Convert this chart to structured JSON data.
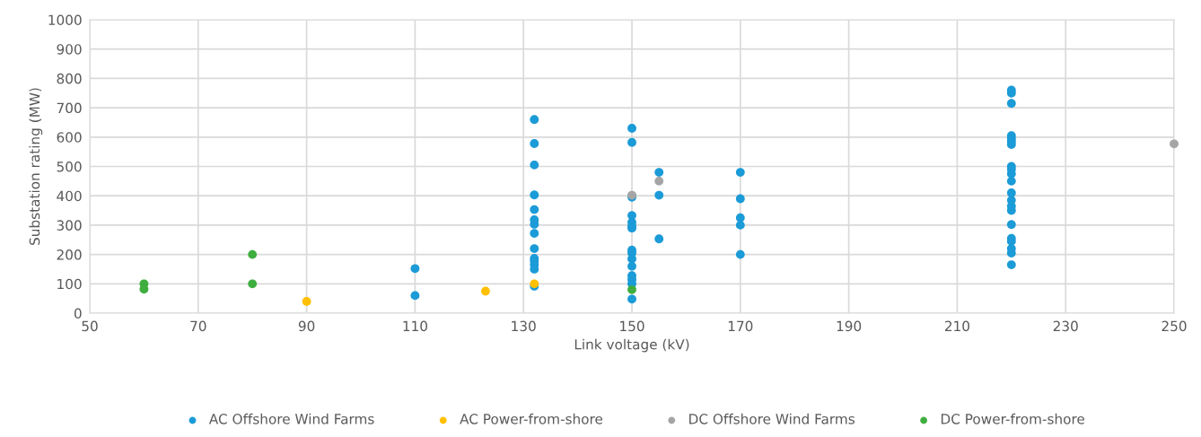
{
  "chart_data": {
    "type": "scatter",
    "xlabel": "Link voltage (kV)",
    "ylabel": "Substation rating (MW)",
    "xlim": [
      50,
      250
    ],
    "xticks": [
      50,
      70,
      90,
      110,
      130,
      150,
      170,
      190,
      210,
      230,
      250
    ],
    "ylim": [
      0,
      1000
    ],
    "yticks": [
      0,
      100,
      200,
      300,
      400,
      500,
      600,
      700,
      800,
      900,
      1000
    ],
    "grid": true,
    "legend": "bottom",
    "marker": "circle",
    "series": [
      {
        "name": "AC Offshore Wind Farms",
        "color": "#1b9bd7",
        "x": [
          110,
          110,
          132,
          132,
          132,
          132,
          132,
          132,
          132,
          132,
          132,
          132,
          132,
          132,
          132,
          132,
          150,
          150,
          150,
          150,
          150,
          150,
          150,
          150,
          150,
          150,
          150,
          150,
          150,
          150,
          150,
          150,
          155,
          155,
          155,
          170,
          170,
          170,
          170,
          170,
          220,
          220,
          220,
          220,
          220,
          220,
          220,
          220,
          220,
          220,
          220,
          220,
          220,
          220,
          220,
          220,
          220,
          220,
          220,
          220,
          220
        ],
        "values": [
          152,
          60,
          660,
          578,
          505,
          403,
          353,
          318,
          303,
          272,
          220,
          187,
          178,
          165,
          150,
          92,
          630,
          582,
          400,
          333,
          310,
          297,
          290,
          215,
          205,
          185,
          160,
          128,
          115,
          100,
          48,
          395,
          480,
          402,
          253,
          480,
          390,
          325,
          300,
          200,
          760,
          750,
          715,
          605,
          595,
          585,
          575,
          500,
          490,
          475,
          450,
          410,
          385,
          365,
          350,
          302,
          255,
          245,
          220,
          205,
          165
        ]
      },
      {
        "name": "AC Power-from-shore",
        "color": "#ffc000",
        "x": [
          90,
          123,
          132
        ],
        "values": [
          40,
          75,
          100
        ]
      },
      {
        "name": "DC Offshore Wind Farms",
        "color": "#a5a5a5",
        "x": [
          150,
          155,
          250
        ],
        "values": [
          402,
          450,
          577
        ]
      },
      {
        "name": "DC Power-from-shore",
        "color": "#3fae3f",
        "x": [
          60,
          60,
          80,
          80,
          150
        ],
        "values": [
          100,
          82,
          200,
          100,
          80
        ]
      }
    ]
  }
}
